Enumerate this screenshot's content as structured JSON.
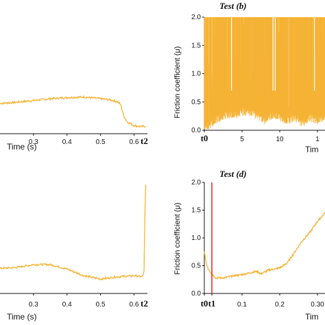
{
  "chart_data": [
    {
      "type": "line",
      "panel": "top-left",
      "title": "",
      "xlabel": "Time (s)",
      "ylabel": "",
      "xticks": [
        "0.3",
        "0.4",
        "0.5",
        "0.6"
      ],
      "end_marker": "t2",
      "xlim": [
        0.2,
        0.64
      ],
      "ylim": [
        0,
        2.0
      ],
      "series": [
        {
          "color": "#F5B335",
          "x": [
            0.2,
            0.25,
            0.3,
            0.35,
            0.4,
            0.45,
            0.5,
            0.53,
            0.55,
            0.56,
            0.57,
            0.58,
            0.6,
            0.62,
            0.635
          ],
          "y": [
            0.52,
            0.54,
            0.57,
            0.6,
            0.62,
            0.63,
            0.6,
            0.58,
            0.55,
            0.5,
            0.3,
            0.2,
            0.14,
            0.12,
            0.13
          ]
        }
      ]
    },
    {
      "type": "area",
      "panel": "top-right",
      "title": "Test (b)",
      "xlabel": "Tim",
      "ylabel": "Friction coefficient (μ)",
      "xticks": [
        "t0",
        "5",
        "10",
        "1"
      ],
      "yticks": [
        "0.0",
        "0.5",
        "1.0",
        "1.5",
        "2.0"
      ],
      "xlim": [
        0,
        16
      ],
      "ylim": [
        0,
        2.0
      ],
      "series": [
        {
          "color": "#F5B335",
          "upper": 2.0,
          "x": [
            0,
            1,
            2,
            3,
            4,
            5,
            6,
            7,
            8,
            9,
            10,
            11,
            12,
            13,
            14,
            15,
            16
          ],
          "lower_envelope": [
            0.1,
            0.2,
            0.3,
            0.35,
            0.35,
            0.4,
            0.4,
            0.35,
            0.25,
            0.35,
            0.3,
            0.25,
            0.3,
            0.2,
            0.3,
            0.25,
            0.3
          ]
        }
      ]
    },
    {
      "type": "line",
      "panel": "bottom-left",
      "title": "",
      "xlabel": "Time (s)",
      "ylabel": "",
      "xticks": [
        "0.3",
        "0.4",
        "0.5",
        "0.6"
      ],
      "end_marker": "t2",
      "xlim": [
        0.2,
        0.64
      ],
      "ylim": [
        0,
        2.0
      ],
      "series": [
        {
          "color": "#F5B335",
          "x": [
            0.2,
            0.25,
            0.3,
            0.35,
            0.4,
            0.45,
            0.5,
            0.55,
            0.6,
            0.625,
            0.63,
            0.632,
            0.635
          ],
          "y": [
            0.45,
            0.47,
            0.52,
            0.52,
            0.44,
            0.32,
            0.26,
            0.3,
            0.32,
            0.3,
            0.4,
            1.3,
            1.95
          ]
        }
      ]
    },
    {
      "type": "line",
      "panel": "bottom-right",
      "title": "Test (d)",
      "xlabel": "Tim",
      "ylabel": "Friction coefficient (μ)",
      "xticks": [
        "t0",
        "t1",
        "0.1",
        "0.2",
        "0.30"
      ],
      "yticks": [
        "0.0",
        "0.5",
        "1.0",
        "1.5",
        "2.0"
      ],
      "xlim": [
        0,
        0.32
      ],
      "ylim": [
        0,
        2.0
      ],
      "t1_line": {
        "x": 0.02,
        "color": "#E03030"
      },
      "series": [
        {
          "color": "#F5B335",
          "x": [
            0.0,
            0.005,
            0.01,
            0.02,
            0.03,
            0.05,
            0.08,
            0.1,
            0.12,
            0.14,
            0.15,
            0.17,
            0.2,
            0.22,
            0.24,
            0.26,
            0.28,
            0.3,
            0.32
          ],
          "y": [
            0.75,
            0.55,
            0.45,
            0.35,
            0.28,
            0.28,
            0.32,
            0.34,
            0.37,
            0.4,
            0.35,
            0.42,
            0.46,
            0.55,
            0.75,
            0.95,
            1.1,
            1.3,
            1.45
          ]
        }
      ]
    }
  ]
}
